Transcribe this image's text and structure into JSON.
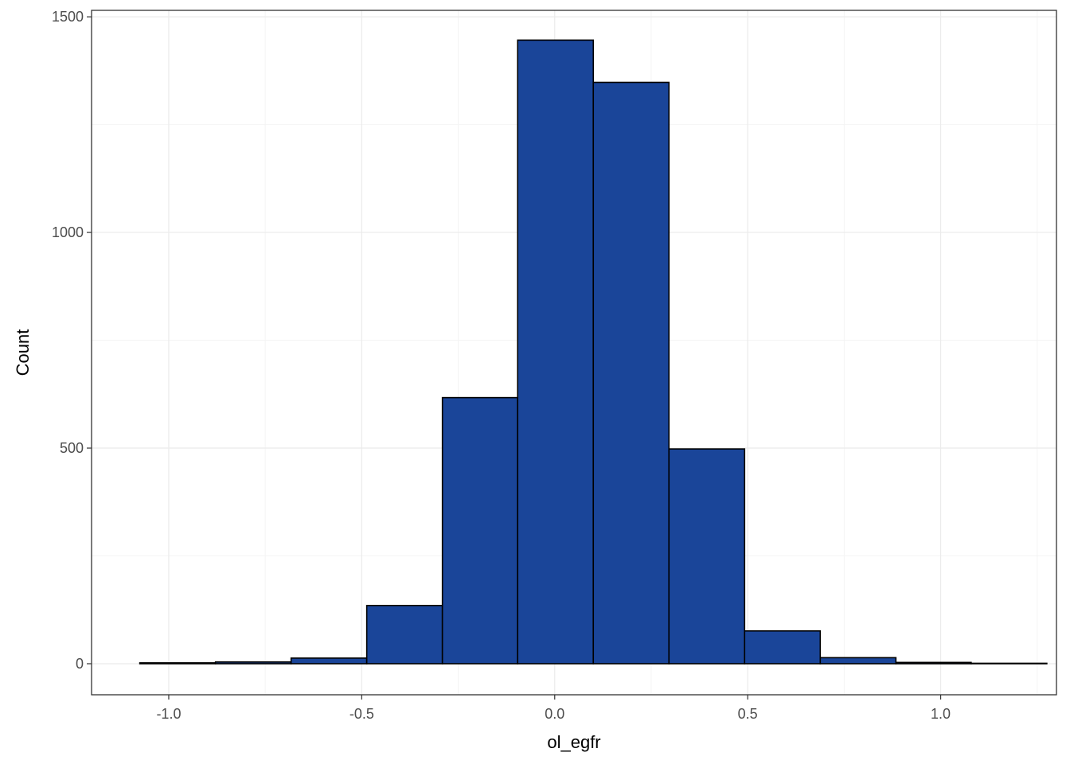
{
  "chart_data": {
    "type": "bar",
    "subtype": "histogram",
    "xlabel": "ol_egfr",
    "ylabel": "Count",
    "xlim": [
      -1.2,
      1.3
    ],
    "ylim": [
      -72,
      1515
    ],
    "x_ticks": [
      -1.0,
      -0.5,
      0.0,
      0.5,
      1.0
    ],
    "x_tick_labels": [
      "-1.0",
      "-0.5",
      "0.0",
      "0.5",
      "1.0"
    ],
    "y_ticks": [
      0,
      500,
      1000,
      1500
    ],
    "y_tick_labels": [
      "0",
      "500",
      "1000",
      "1500"
    ],
    "grid": true,
    "bins": [
      {
        "x0": -1.075,
        "x1": -0.879,
        "count": 2
      },
      {
        "x0": -0.879,
        "x1": -0.683,
        "count": 4
      },
      {
        "x0": -0.683,
        "x1": -0.487,
        "count": 13
      },
      {
        "x0": -0.487,
        "x1": -0.291,
        "count": 135
      },
      {
        "x0": -0.291,
        "x1": -0.096,
        "count": 617
      },
      {
        "x0": -0.096,
        "x1": 0.1,
        "count": 1446
      },
      {
        "x0": 0.1,
        "x1": 0.296,
        "count": 1348
      },
      {
        "x0": 0.296,
        "x1": 0.492,
        "count": 498
      },
      {
        "x0": 0.492,
        "x1": 0.688,
        "count": 76
      },
      {
        "x0": 0.688,
        "x1": 0.884,
        "count": 14
      },
      {
        "x0": 0.884,
        "x1": 1.079,
        "count": 3
      },
      {
        "x0": 1.079,
        "x1": 1.275,
        "count": 1
      }
    ]
  },
  "colors": {
    "bar_fill": "#1a4599",
    "bar_stroke": "#000000",
    "grid_major": "#ebebeb",
    "grid_minor": "#f4f4f4",
    "panel_border": "#333333"
  }
}
